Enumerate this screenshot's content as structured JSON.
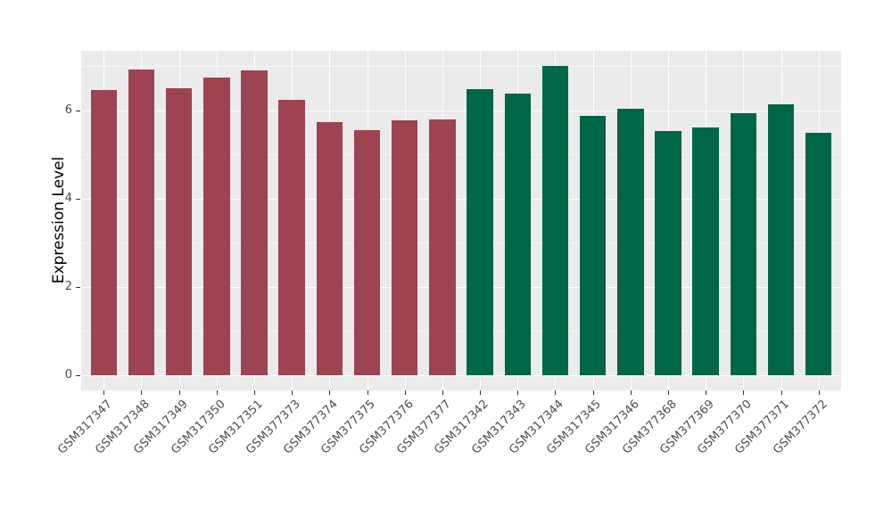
{
  "chart_data": {
    "type": "bar",
    "title": "",
    "xlabel": "",
    "ylabel": "Expression Level",
    "categories": [
      "GSM317347",
      "GSM317348",
      "GSM317349",
      "GSM317350",
      "GSM317351",
      "GSM377373",
      "GSM377374",
      "GSM377375",
      "GSM377376",
      "GSM377377",
      "GSM317342",
      "GSM317343",
      "GSM317344",
      "GSM317345",
      "GSM317346",
      "GSM377368",
      "GSM377369",
      "GSM377370",
      "GSM377371",
      "GSM377372"
    ],
    "values": [
      6.45,
      6.92,
      6.5,
      6.73,
      6.9,
      6.23,
      5.73,
      5.55,
      5.77,
      5.78,
      6.47,
      6.37,
      7.0,
      5.86,
      6.04,
      5.52,
      5.6,
      5.92,
      6.14,
      5.48
    ],
    "colors": [
      "#9E4352",
      "#9E4352",
      "#9E4352",
      "#9E4352",
      "#9E4352",
      "#9E4352",
      "#9E4352",
      "#9E4352",
      "#9E4352",
      "#9E4352",
      "#006648",
      "#006648",
      "#006648",
      "#006648",
      "#006648",
      "#006648",
      "#006648",
      "#006648",
      "#006648",
      "#006648"
    ],
    "group_colors": {
      "left_group": "#9E4352",
      "right_group": "#006648"
    },
    "ylim": [
      0,
      7.35
    ],
    "yticks": [
      0,
      2,
      4,
      6
    ],
    "ytick_labels": [
      "0",
      "2",
      "4",
      "6"
    ],
    "yticks_minor": [
      1,
      3,
      5,
      7
    ],
    "grid": "on",
    "legend_position": "none",
    "panel_background": "#EBEBEB",
    "gridline_color": "#FFFFFF",
    "axis_text_color": "#4D4D4D"
  }
}
